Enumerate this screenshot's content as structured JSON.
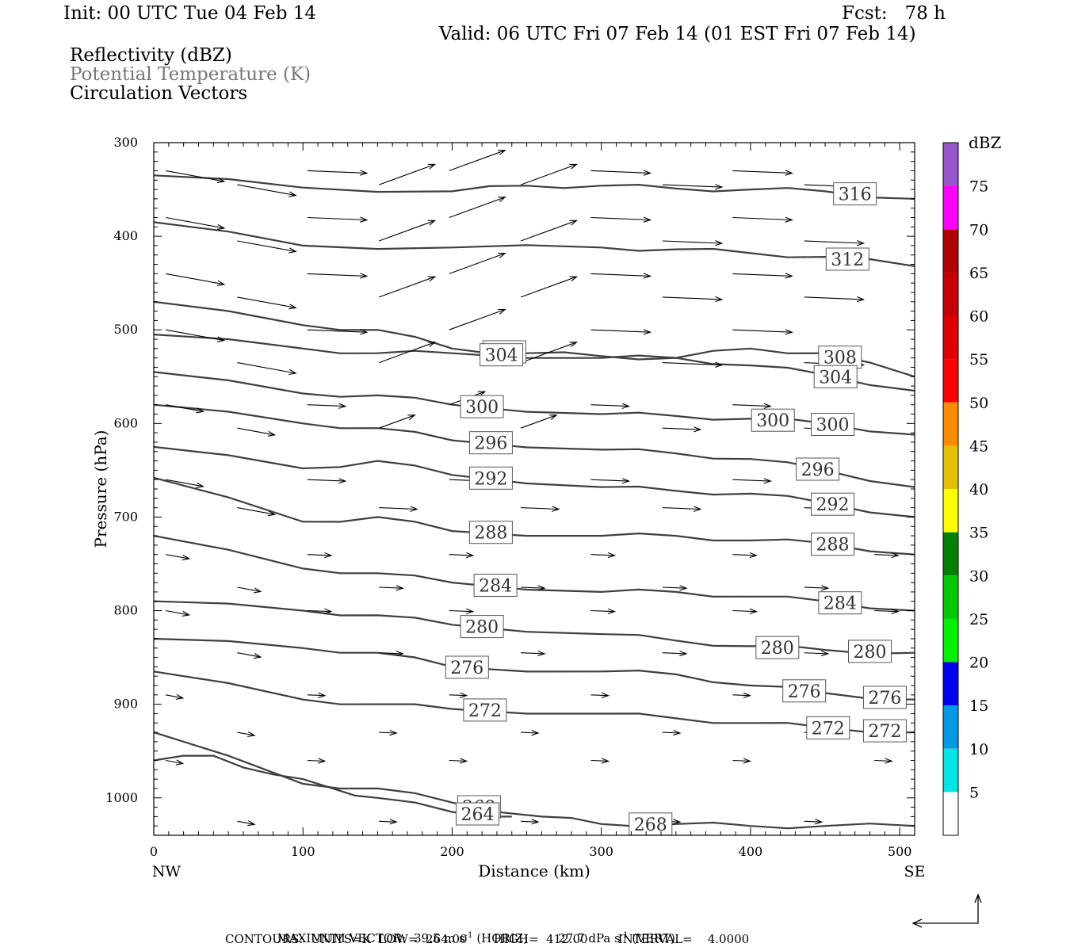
{
  "header": {
    "init": "Init: 00 UTC Tue 04 Feb 14",
    "fcst": "Fcst:   78 h",
    "valid": "Valid: 06 UTC Fri 07 Feb 14 (01 EST Fri 07 Feb 14)"
  },
  "fields": {
    "reflectivity": "Reflectivity (dBZ)",
    "theta": "Potential Temperature (K)",
    "vectors": "Circulation Vectors"
  },
  "footer": {
    "max_vector_label": "MAXIMUM VECTOR:",
    "max_horiz": "39.5 m s",
    "horiz_tag": "(HORIZ)",
    "max_vert": "27.7 dPa s",
    "vert_tag": "(VERT)",
    "exp": "-1",
    "contours": "CONTOURS:  UNITS=K  LOW=  264.00       HIGH=  412.00        INTERVAL=    4.0000"
  },
  "chart_data": {
    "type": "line",
    "title": "",
    "xlabel": "Distance (km)",
    "ylabel": "Pressure (hPa)",
    "xlim": [
      0,
      510
    ],
    "ylim": [
      1040,
      300
    ],
    "x_ticks": [
      0,
      100,
      200,
      300,
      400,
      500
    ],
    "x_end_labels": [
      "NW",
      "SE"
    ],
    "y_ticks": [
      300,
      400,
      500,
      600,
      700,
      800,
      900,
      1000
    ],
    "grid": false,
    "line_color": "#3f3f3f",
    "colorbar": {
      "label": "dBZ",
      "levels": [
        5,
        10,
        15,
        20,
        25,
        30,
        35,
        40,
        45,
        50,
        55,
        60,
        65,
        70,
        75
      ],
      "colors": [
        "#00e5e5",
        "#0099e6",
        "#0000f0",
        "#00f000",
        "#00c800",
        "#008000",
        "#ffff00",
        "#e5c000",
        "#ff8c00",
        "#ff0000",
        "#e00000",
        "#c40000",
        "#b00000",
        "#ff00ff",
        "#9955cc"
      ]
    },
    "series": [
      {
        "value": 316,
        "x": [
          0,
          100,
          200,
          250,
          300,
          350,
          400,
          450,
          510
        ],
        "y": [
          335,
          348,
          352,
          346,
          346,
          349,
          350,
          352,
          360
        ]
      },
      {
        "value": 312,
        "x": [
          0,
          100,
          200,
          300,
          350,
          400,
          450,
          510
        ],
        "y": [
          385,
          410,
          412,
          412,
          414,
          418,
          422,
          432
        ]
      },
      {
        "value": 308,
        "x": [
          0,
          100,
          150,
          200,
          250,
          300,
          350,
          400,
          450,
          510
        ],
        "y": [
          470,
          495,
          500,
          520,
          525,
          528,
          530,
          520,
          525,
          550
        ]
      },
      {
        "value": 304,
        "x": [
          0,
          100,
          150,
          200,
          300,
          350,
          400,
          450,
          510
        ],
        "y": [
          505,
          520,
          525,
          525,
          530,
          530,
          538,
          548,
          565
        ]
      },
      {
        "value": 300,
        "x": [
          0,
          100,
          150,
          200,
          300,
          350,
          400,
          450,
          510
        ],
        "y": [
          545,
          568,
          570,
          580,
          590,
          592,
          595,
          600,
          612
        ]
      },
      {
        "value": 296,
        "x": [
          0,
          100,
          150,
          200,
          300,
          350,
          400,
          450,
          510
        ],
        "y": [
          580,
          600,
          605,
          618,
          628,
          632,
          638,
          650,
          668
        ]
      },
      {
        "value": 292,
        "x": [
          0,
          100,
          150,
          200,
          300,
          350,
          400,
          450,
          510
        ],
        "y": [
          625,
          648,
          640,
          655,
          668,
          672,
          675,
          685,
          700
        ]
      },
      {
        "value": 288,
        "x": [
          0,
          100,
          150,
          200,
          300,
          350,
          400,
          450,
          510
        ],
        "y": [
          658,
          705,
          700,
          715,
          720,
          720,
          725,
          728,
          740
        ]
      },
      {
        "value": 284,
        "x": [
          0,
          100,
          150,
          200,
          300,
          350,
          400,
          450,
          510
        ],
        "y": [
          720,
          755,
          760,
          770,
          780,
          780,
          785,
          790,
          800
        ]
      },
      {
        "value": 280,
        "x": [
          0,
          100,
          150,
          200,
          300,
          350,
          400,
          450,
          510
        ],
        "y": [
          790,
          800,
          805,
          815,
          825,
          832,
          838,
          842,
          845
        ]
      },
      {
        "value": 276,
        "x": [
          0,
          100,
          150,
          200,
          300,
          350,
          400,
          450,
          510
        ],
        "y": [
          830,
          840,
          845,
          860,
          865,
          868,
          880,
          888,
          895
        ]
      },
      {
        "value": 272,
        "x": [
          0,
          100,
          150,
          200,
          300,
          350,
          400,
          450,
          510
        ],
        "y": [
          865,
          895,
          900,
          905,
          910,
          915,
          920,
          925,
          930
        ]
      },
      {
        "value": 268,
        "x": [
          0,
          100,
          150,
          200,
          260,
          300,
          350,
          400,
          450,
          510
        ],
        "y": [
          930,
          985,
          990,
          1005,
          1020,
          1028,
          1028,
          1030,
          1030,
          1030
        ]
      },
      {
        "value": 264,
        "x": [
          0,
          40,
          80,
          120,
          150,
          200,
          240
        ],
        "y": [
          960,
          955,
          975,
          990,
          1000,
          1015,
          1020
        ]
      }
    ],
    "contour_labels": [
      316,
      312,
      308,
      308,
      304,
      304,
      300,
      300,
      300,
      296,
      296,
      292,
      292,
      288,
      288,
      284,
      284,
      280,
      280,
      280,
      276,
      276,
      276,
      272,
      272,
      272,
      268,
      268,
      264
    ]
  }
}
